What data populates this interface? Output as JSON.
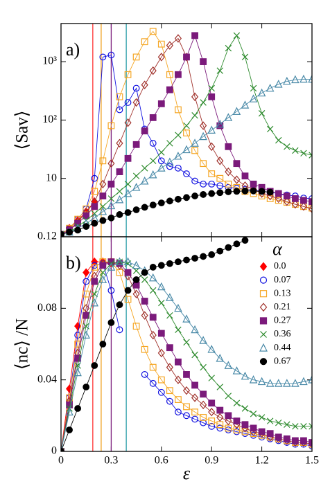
{
  "chart_data": [
    {
      "type": "line",
      "panel_label": "a)",
      "ylabel": "⟨Sav⟩",
      "log_scale": true,
      "xlim": [
        0,
        1.5
      ],
      "ylim": [
        1,
        4500
      ],
      "yticks": [
        10,
        {
          "value": 100,
          "label": "10²"
        },
        {
          "value": 1000,
          "label": "10³"
        }
      ],
      "vlines": [
        {
          "x": 0.19,
          "color": "#ff3030"
        },
        {
          "x": 0.24,
          "color": "#f0a020"
        },
        {
          "x": 0.3,
          "color": "#7b1a7b"
        },
        {
          "x": 0.39,
          "color": "#2a9da8"
        }
      ],
      "x": [
        0,
        0.05,
        0.1,
        0.15,
        0.2,
        0.25,
        0.3,
        0.35,
        0.4,
        0.45,
        0.5,
        0.55,
        0.6,
        0.65,
        0.7,
        0.75,
        0.8,
        0.85,
        0.9,
        0.95,
        1.0,
        1.05,
        1.1,
        1.15,
        1.2,
        1.25,
        1.3,
        1.35,
        1.4,
        1.45,
        1.5
      ],
      "series": [
        {
          "color": "#ff0000",
          "marker": "diamond",
          "filled": true,
          "values": [
            1.1,
            1.4,
            1.9,
            2.7,
            4,
            null,
            null,
            null,
            null,
            null,
            null,
            null,
            null,
            null,
            null,
            null,
            null,
            null,
            null,
            null,
            null,
            null,
            null,
            null,
            null,
            null,
            null,
            null,
            null,
            null,
            null
          ]
        },
        {
          "color": "#1010e0",
          "marker": "circle",
          "filled": false,
          "values": [
            1.1,
            1.4,
            2,
            3,
            10,
            1200,
            1300,
            150,
            200,
            350,
            70,
            40,
            20,
            16,
            15,
            12,
            9,
            8,
            8,
            7.5,
            7,
            6.8,
            6.5,
            6.3,
            6,
            5.8,
            5.5,
            5.2,
            5,
            4.6,
            4.5
          ]
        },
        {
          "color": "#f5a623",
          "marker": "square",
          "filled": false,
          "values": [
            1.1,
            1.4,
            2,
            3,
            6,
            20,
            80,
            250,
            600,
            1200,
            2200,
            3300,
            2000,
            600,
            150,
            60,
            30,
            18,
            12,
            10,
            8,
            7,
            6,
            5.5,
            5,
            4.5,
            4.2,
            3.9,
            3.6,
            3.3,
            3.1
          ]
        },
        {
          "color": "#a0302a",
          "marker": "diamond",
          "filled": false,
          "values": [
            1.1,
            1.3,
            1.8,
            2.6,
            4,
            8,
            18,
            40,
            90,
            200,
            400,
            700,
            1200,
            1900,
            2500,
            1200,
            250,
            80,
            35,
            20,
            13,
            9.5,
            7.5,
            6.5,
            5.5,
            5,
            4.5,
            4,
            3.6,
            3.3,
            3
          ]
        },
        {
          "color": "#7b1a7b",
          "marker": "square",
          "filled": true,
          "values": [
            1.1,
            1.3,
            1.7,
            2.3,
            3.3,
            5,
            8,
            13,
            22,
            38,
            65,
            110,
            190,
            330,
            600,
            1200,
            2800,
            1000,
            250,
            80,
            35,
            18,
            11,
            8,
            7,
            6,
            5.5,
            5,
            4.5,
            4.2,
            4
          ]
        },
        {
          "color": "#2e8b2e",
          "marker": "x",
          "filled": false,
          "values": [
            1.1,
            1.2,
            1.5,
            1.9,
            2.5,
            3.3,
            4.5,
            6,
            8,
            11,
            15,
            20,
            28,
            40,
            55,
            80,
            120,
            200,
            350,
            700,
            1700,
            2800,
            1200,
            350,
            130,
            70,
            45,
            35,
            30,
            27,
            25
          ]
        },
        {
          "color": "#4a8aa8",
          "marker": "triangle",
          "filled": false,
          "values": [
            1.1,
            1.2,
            1.4,
            1.7,
            2.1,
            2.7,
            3.4,
            4.3,
            5.5,
            7,
            9,
            11.5,
            15,
            19,
            24,
            31,
            40,
            52,
            67,
            85,
            110,
            140,
            180,
            230,
            290,
            350,
            410,
            460,
            490,
            500,
            500
          ]
        },
        {
          "color": "#000000",
          "marker": "circle",
          "filled": true,
          "values": [
            1.1,
            1.2,
            1.3,
            1.5,
            1.7,
            1.9,
            2.1,
            2.4,
            2.6,
            2.9,
            3.2,
            3.5,
            3.8,
            4.1,
            4.4,
            4.7,
            5,
            5.3,
            5.5,
            5.7,
            5.9,
            6,
            6.1,
            6.1,
            6,
            5.8,
            null,
            null,
            null,
            null,
            null
          ]
        }
      ]
    },
    {
      "type": "line",
      "panel_label": "b)",
      "ylabel": "⟨nc⟩ /N",
      "xlabel": "ε",
      "legend": true,
      "legend_title": "α",
      "legend_position": "upper right",
      "xlim": [
        0,
        1.5
      ],
      "xticks": [
        0,
        0.3,
        0.6,
        0.9,
        1.2,
        1.5
      ],
      "ylim": [
        0,
        0.12
      ],
      "yticks": [
        0,
        0.04,
        0.08,
        0.12
      ],
      "vlines": [
        {
          "x": 0.19,
          "color": "#ff3030"
        },
        {
          "x": 0.24,
          "color": "#f0a020"
        },
        {
          "x": 0.3,
          "color": "#7b1a7b"
        },
        {
          "x": 0.39,
          "color": "#2a9da8"
        }
      ],
      "x": [
        0,
        0.05,
        0.1,
        0.15,
        0.2,
        0.25,
        0.3,
        0.35,
        0.4,
        0.45,
        0.5,
        0.55,
        0.6,
        0.65,
        0.7,
        0.75,
        0.8,
        0.85,
        0.9,
        0.95,
        1.0,
        1.05,
        1.1,
        1.15,
        1.2,
        1.25,
        1.3,
        1.35,
        1.4,
        1.45,
        1.5
      ],
      "series": [
        {
          "name": "0.0",
          "color": "#ff0000",
          "marker": "diamond",
          "filled": true,
          "values": [
            0,
            0.035,
            0.07,
            0.1,
            0.106,
            0.106,
            0.105,
            null,
            null,
            null,
            null,
            null,
            null,
            null,
            null,
            null,
            null,
            null,
            null,
            null,
            null,
            null,
            null,
            null,
            null,
            null,
            null,
            null,
            null,
            null,
            null
          ]
        },
        {
          "name": "0.07",
          "color": "#1010e0",
          "marker": "circle",
          "filled": false,
          "values": [
            0,
            0.03,
            0.065,
            0.095,
            0.104,
            0.105,
            0.09,
            0.068,
            null,
            null,
            0.043,
            0.038,
            0.033,
            0.028,
            0.022,
            0.02,
            0.018,
            0.016,
            0.014,
            0.013,
            0.012,
            0.011,
            0.01,
            0.009,
            0.008,
            0.007,
            0.006,
            0.005,
            0.004,
            0.004,
            0.003
          ]
        },
        {
          "name": "0.13",
          "color": "#f5a623",
          "marker": "square",
          "filled": false,
          "values": [
            0,
            0.03,
            0.06,
            0.088,
            0.103,
            0.106,
            0.106,
            0.1,
            0.085,
            0.07,
            0.057,
            0.047,
            0.04,
            0.034,
            0.029,
            0.025,
            0.022,
            0.019,
            0.017,
            0.015,
            0.013,
            0.012,
            0.011,
            0.01,
            0.009,
            0.008,
            0.007,
            0.006,
            0.005,
            0.005,
            0.004
          ]
        },
        {
          "name": "0.21",
          "color": "#a0302a",
          "marker": "diamond",
          "filled": false,
          "values": [
            0,
            0.028,
            0.055,
            0.08,
            0.098,
            0.105,
            0.106,
            0.104,
            0.098,
            0.088,
            0.076,
            0.065,
            0.055,
            0.047,
            0.04,
            0.034,
            0.03,
            0.026,
            0.022,
            0.019,
            0.017,
            0.015,
            0.013,
            0.011,
            0.01,
            0.008,
            0.007,
            0.006,
            0.005,
            0.005,
            0.004
          ]
        },
        {
          "name": "0.27",
          "color": "#7b1a7b",
          "marker": "square",
          "filled": true,
          "values": [
            0,
            0.026,
            0.052,
            0.076,
            0.095,
            0.104,
            0.106,
            0.105,
            0.1,
            0.093,
            0.084,
            0.075,
            0.066,
            0.058,
            0.05,
            0.043,
            0.037,
            0.032,
            0.027,
            0.023,
            0.02,
            0.017,
            0.015,
            0.013,
            0.011,
            0.01,
            0.008,
            0.007,
            0.006,
            0.006,
            0.005
          ]
        },
        {
          "name": "0.36",
          "color": "#2e8b2e",
          "marker": "x",
          "filled": false,
          "values": [
            0,
            0.024,
            0.048,
            0.07,
            0.088,
            0.1,
            0.105,
            0.106,
            0.105,
            0.101,
            0.096,
            0.09,
            0.083,
            0.076,
            0.068,
            0.061,
            0.054,
            0.047,
            0.041,
            0.036,
            0.031,
            0.027,
            0.024,
            0.021,
            0.019,
            0.017,
            0.016,
            0.015,
            0.014,
            0.014,
            0.014
          ]
        },
        {
          "name": "0.44",
          "color": "#4a8aa8",
          "marker": "triangle",
          "filled": false,
          "values": [
            0,
            0.022,
            0.044,
            0.065,
            0.083,
            0.096,
            0.103,
            0.106,
            0.106,
            0.104,
            0.101,
            0.097,
            0.092,
            0.086,
            0.08,
            0.074,
            0.068,
            0.062,
            0.057,
            0.052,
            0.048,
            0.045,
            0.042,
            0.04,
            0.039,
            0.038,
            0.038,
            0.038,
            0.038,
            0.039,
            0.04
          ]
        },
        {
          "name": "0.67",
          "color": "#000000",
          "marker": "circle",
          "filled": true,
          "values": [
            0,
            0.012,
            0.024,
            0.036,
            0.048,
            0.06,
            0.072,
            0.082,
            0.09,
            0.096,
            0.1,
            0.103,
            0.104,
            0.105,
            0.106,
            0.107,
            0.108,
            0.109,
            0.11,
            0.112,
            0.114,
            0.116,
            0.118,
            null,
            null,
            null,
            null,
            null,
            null,
            null,
            null
          ]
        }
      ]
    }
  ]
}
